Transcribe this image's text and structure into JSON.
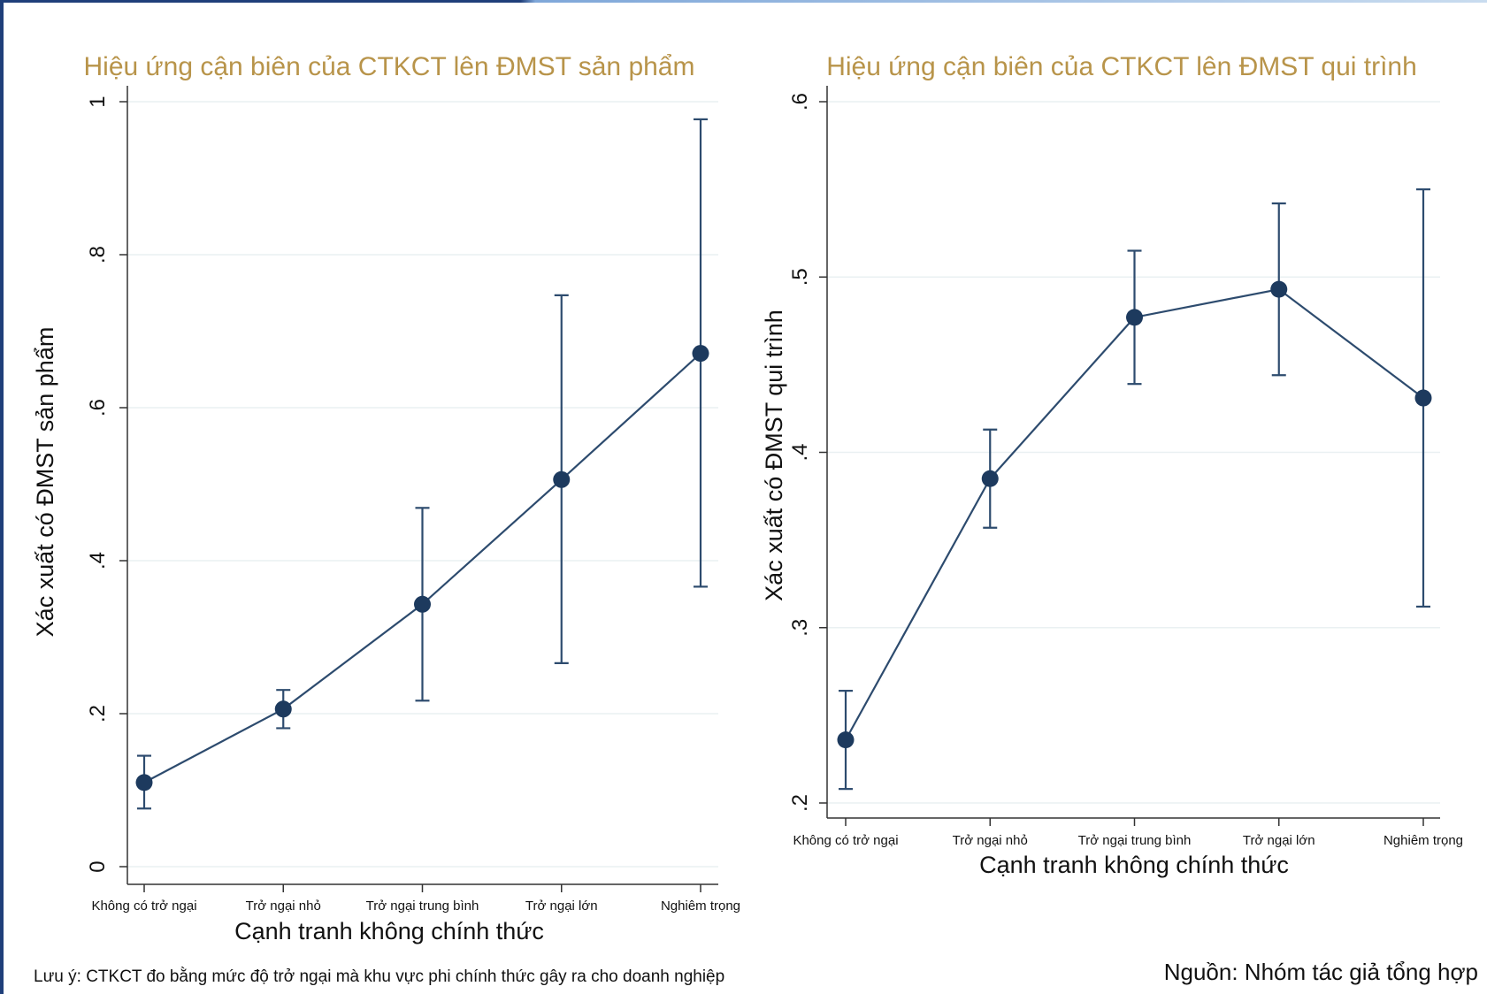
{
  "chart_data": [
    {
      "type": "line",
      "title": "Hiệu ứng cận biên của CTKCT lên ĐMST sản phẩm",
      "xlabel": "Cạnh tranh không chính thức",
      "ylabel": "Xác xuất có ĐMST sản phẩm",
      "categories": [
        "Không có trở ngại",
        "Trở ngại nhỏ",
        "Trở ngại trung bình",
        "Trở ngại lớn",
        "Nghiêm trọng"
      ],
      "series": [
        {
          "values": [
            0.11,
            0.206,
            0.343,
            0.506,
            0.671
          ],
          "ci_low": [
            0.076,
            0.181,
            0.217,
            0.266,
            0.366
          ],
          "ci_high": [
            0.145,
            0.231,
            0.469,
            0.747,
            0.977
          ]
        }
      ],
      "ylim": [
        0,
        1
      ],
      "yticks": [
        0,
        0.2,
        0.4,
        0.6,
        0.8,
        1
      ],
      "ytick_labels": [
        "0",
        ".2",
        ".4",
        ".6",
        ".8",
        "1"
      ],
      "grid": true,
      "color": "#2d4b6e"
    },
    {
      "type": "line",
      "title": "Hiệu ứng cận biên của CTKCT lên ĐMST qui trình",
      "xlabel": "Cạnh tranh không chính thức",
      "ylabel": "Xác xuất có ĐMST qui trình",
      "categories": [
        "Không có trở ngại",
        "Trở ngại nhỏ",
        "Trở ngại trung bình",
        "Trở ngại lớn",
        "Nghiêm trọng"
      ],
      "series": [
        {
          "values": [
            0.236,
            0.385,
            0.477,
            0.493,
            0.431
          ],
          "ci_low": [
            0.208,
            0.357,
            0.439,
            0.444,
            0.312
          ],
          "ci_high": [
            0.264,
            0.413,
            0.515,
            0.542,
            0.55
          ]
        }
      ],
      "ylim": [
        0.2,
        0.6
      ],
      "yticks": [
        0.2,
        0.3,
        0.4,
        0.5,
        0.6
      ],
      "ytick_labels": [
        ".2",
        ".3",
        ".4",
        ".5",
        ".6"
      ],
      "grid": true,
      "color": "#2d4b6e"
    }
  ],
  "notes": {
    "left": "Lưu ý: CTKCT đo bằng mức độ trở ngại mà khu vực phi chính thức gây ra cho doanh nghiệp",
    "right": "Nguồn: Nhóm tác giả tổng hợp"
  }
}
